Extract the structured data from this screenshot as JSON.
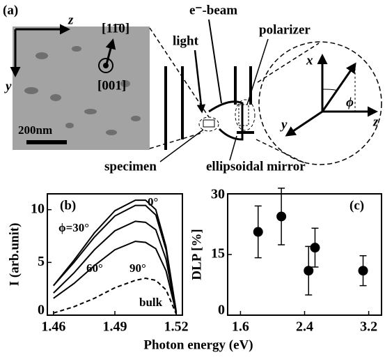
{
  "diagram": {
    "panel_label": "(a)",
    "axis_z": "z",
    "axis_y": "y",
    "direction_1": "[11̄0]",
    "direction_2": "[001]",
    "scale_bar": "200nm",
    "ebeam": "e⁻-beam",
    "light": "light",
    "polarizer": "polarizer",
    "specimen": "specimen",
    "mirror": "ellipsoidal mirror",
    "coord_x": "x",
    "coord_y": "y",
    "coord_z": "z",
    "angle": "ϕ"
  },
  "x_axis_title": "Photon energy (eV)",
  "chart_data": [
    {
      "type": "line",
      "panel_label": "(b)",
      "ylabel": "I (arb.unit)",
      "x": [
        1.46,
        1.47,
        1.48,
        1.49,
        1.5,
        1.505,
        1.51,
        1.515,
        1.52
      ],
      "series": [
        {
          "name": "0°",
          "color": "#000000",
          "values": [
            2.8,
            5.2,
            7.8,
            9.9,
            10.9,
            10.9,
            10.0,
            6.5,
            0.3
          ]
        },
        {
          "name": "ϕ=30°",
          "color": "#000000",
          "values": [
            2.8,
            5.0,
            7.4,
            9.4,
            10.4,
            10.4,
            9.5,
            6.2,
            0.3
          ]
        },
        {
          "name": "60°",
          "color": "#000000",
          "values": [
            2.1,
            4.0,
            6.2,
            8.0,
            8.9,
            8.8,
            8.1,
            5.3,
            0.2
          ]
        },
        {
          "name": "90°",
          "color": "#000000",
          "values": [
            1.6,
            3.0,
            4.7,
            6.2,
            7.0,
            6.9,
            6.3,
            4.2,
            0.2
          ]
        },
        {
          "name": "bulk",
          "color": "#000000",
          "dashed": true,
          "values": [
            0.2,
            0.8,
            1.6,
            2.6,
            3.3,
            3.5,
            3.3,
            2.4,
            0.1
          ]
        }
      ],
      "xlim": [
        1.457,
        1.523
      ],
      "xticks": [
        1.46,
        1.49,
        1.52
      ],
      "ylim": [
        0,
        11.5
      ],
      "yticks": [
        0,
        5,
        10
      ],
      "grid": false
    },
    {
      "type": "scatter",
      "panel_label": "(c)",
      "ylabel": "DLP [%]",
      "x": [
        1.82,
        2.11,
        2.45,
        2.53,
        3.13
      ],
      "values": [
        20.6,
        24.4,
        11,
        16.7,
        11
      ],
      "errors": [
        6.4,
        7,
        6,
        4.8,
        3.7
      ],
      "color": "#000000",
      "xlim": [
        1.44,
        3.36
      ],
      "xticks": [
        1.6,
        2.4,
        3.2
      ],
      "ylim": [
        0,
        30
      ],
      "yticks": [
        0,
        15,
        30
      ],
      "grid": false
    }
  ]
}
